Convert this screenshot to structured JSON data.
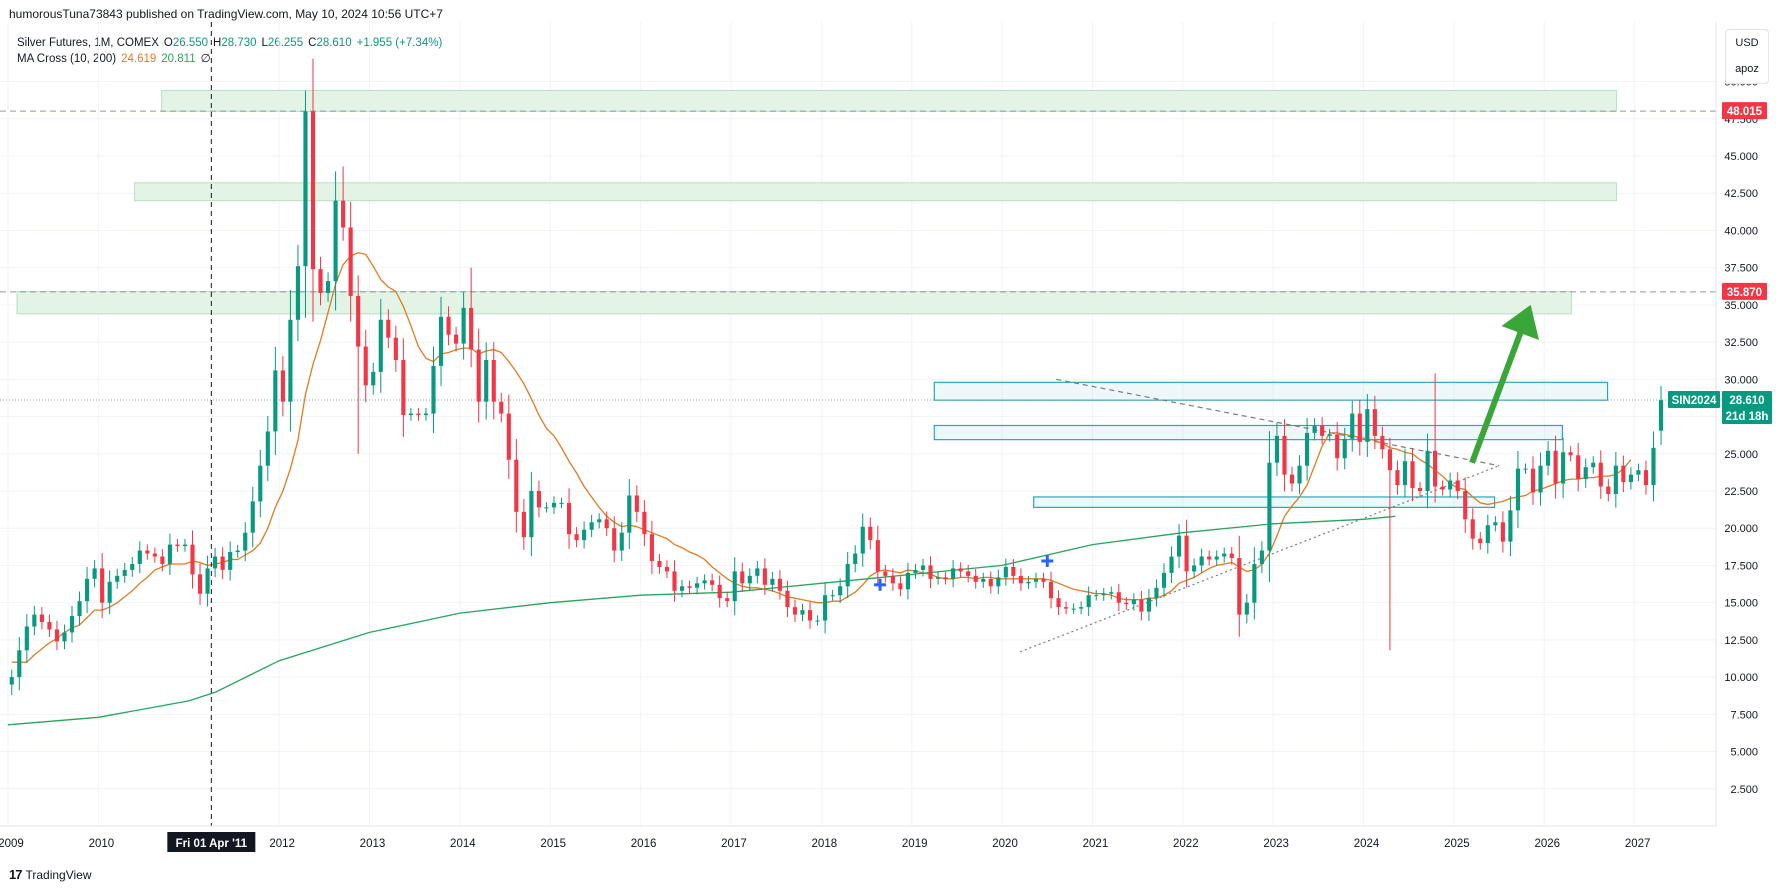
{
  "header": {
    "publisher_text": "humorousTuna73843 published on TradingView.com, May 10, 2024 10:56 UTC+7"
  },
  "legend": {
    "symbol_line": "Silver Futures, 1M, COMEX",
    "open_label": "O",
    "open": "26.550",
    "high_label": "H",
    "high": "28.730",
    "low_label": "L",
    "low": "26.255",
    "close_label": "C",
    "close": "28.610",
    "change": "+1.955 (+7.34%)",
    "indicator_name": "MA Cross (10, 200)",
    "ma_fast": "24.619",
    "ma_slow": "20.811",
    "indicator_extra": "∅"
  },
  "currency_box": {
    "currency": "USD",
    "unit": "apoz"
  },
  "price_tags": {
    "high_level": "48.015",
    "resistance_level": "35.870",
    "symbol": "SIN2024",
    "last_price": "28.610",
    "countdown": "21d 18h"
  },
  "crosshair_label": "Fri 01 Apr '11",
  "footer": {
    "brand": "TradingView"
  },
  "colors": {
    "bull": "#089981",
    "bear": "#f23645",
    "ma_fast": "#e07b22",
    "ma_slow": "#26a65b",
    "zone_fill": "#e3f3e6",
    "zone_stroke": "#b7e0c1",
    "rect_stroke": "#26a9b8",
    "arrow": "#3aa63a",
    "red_tag": "#f23645",
    "teal_tag": "#089981"
  },
  "chart_data": {
    "type": "candlestick",
    "timeframe": "1M",
    "x_ticks": [
      "2009",
      "2010",
      "2012",
      "2013",
      "2014",
      "2015",
      "2016",
      "2017",
      "2018",
      "2019",
      "2020",
      "2021",
      "2022",
      "2023",
      "2024",
      "2025",
      "2026",
      "2027"
    ],
    "y_ticks": [
      "2.500",
      "5.000",
      "7.500",
      "10.000",
      "12.500",
      "15.000",
      "17.500",
      "20.000",
      "22.500",
      "25.000",
      "27.500",
      "30.000",
      "32.500",
      "35.000",
      "37.500",
      "40.000",
      "42.500",
      "45.000",
      "47.500",
      "50.000"
    ],
    "ylim": [
      0,
      54
    ],
    "xlim": [
      2009.0,
      2027.9
    ],
    "closes": [
      10.0,
      11.8,
      13.4,
      14.2,
      13.7,
      13.2,
      12.4,
      13.0,
      14.1,
      15.1,
      16.6,
      17.3,
      15.0,
      16.4,
      16.8,
      17.2,
      17.6,
      18.5,
      18.3,
      18.1,
      17.6,
      18.9,
      18.8,
      18.9,
      16.9,
      15.6,
      17.3,
      18.1,
      17.2,
      18.4,
      18.5,
      19.7,
      21.8,
      24.2,
      26.5,
      30.6,
      28.5,
      34.0,
      37.6,
      48.0,
      37.4,
      35.8,
      36.6,
      42.0,
      40.2,
      35.6,
      32.2,
      29.6,
      30.5,
      34.0,
      32.8,
      31.3,
      27.6,
      27.7,
      27.6,
      27.7,
      30.9,
      34.2,
      33.0,
      32.4,
      34.8,
      32.0,
      28.5,
      31.3,
      28.5,
      27.7,
      24.6,
      21.1,
      19.4,
      22.5,
      21.4,
      21.4,
      21.7,
      21.7,
      19.6,
      19.2,
      19.9,
      20.4,
      20.6,
      20.0,
      18.5,
      19.7,
      22.2,
      21.1,
      19.6,
      17.8,
      17.4,
      17.1,
      15.8,
      16.1,
      16.0,
      16.3,
      16.5,
      16.2,
      15.3,
      15.1,
      17.1,
      16.3,
      16.8,
      17.3,
      16.2,
      16.6,
      15.8,
      14.7,
      14.2,
      14.5,
      13.8,
      13.8,
      15.5,
      15.5,
      16.1,
      17.6,
      18.3,
      20.1,
      19.2,
      17.1,
      16.8,
      16.3,
      15.9,
      17.0,
      17.2,
      17.5,
      16.6,
      16.7,
      16.6,
      17.3,
      17.1,
      16.8,
      16.4,
      16.6,
      16.1,
      16.7,
      17.4,
      16.8,
      16.3,
      16.4,
      16.6,
      16.4,
      15.3,
      14.7,
      14.6,
      14.6,
      14.7,
      15.5,
      15.5,
      15.6,
      15.7,
      15.0,
      14.9,
      15.2,
      14.4,
      15.3,
      16.0,
      17.0,
      18.1,
      19.5,
      17.1,
      17.5,
      18.1,
      17.9,
      18.1,
      18.3,
      18.0,
      14.2,
      15.0,
      17.6,
      18.5,
      24.4,
      26.2,
      23.6,
      23.0,
      24.2,
      26.4,
      26.9,
      26.2,
      26.3,
      24.7,
      26.0,
      27.7,
      25.8,
      28.0,
      26.2,
      25.3,
      23.9,
      22.9,
      24.5,
      22.7,
      22.5,
      25.2,
      22.8,
      22.6,
      23.2,
      22.5,
      20.6,
      19.3,
      19.0,
      20.2,
      20.4,
      19.1,
      21.2,
      24.0,
      24.0,
      22.4,
      24.2,
      25.2,
      23.0,
      25.1,
      24.9,
      23.3,
      24.1,
      24.4,
      22.8,
      22.3,
      24.2,
      23.1,
      23.6,
      23.9,
      22.9,
      25.4,
      28.6
    ],
    "ma10": [
      11.0,
      11.0,
      11.0,
      11.5,
      11.9,
      12.3,
      12.6,
      13.0,
      13.3,
      13.5,
      14.0,
      14.5,
      14.5,
      14.7,
      15.0,
      15.4,
      15.8,
      16.3,
      16.7,
      17.2,
      17.4,
      17.6,
      17.6,
      17.6,
      17.8,
      17.7,
      17.5,
      17.6,
      17.7,
      17.9,
      17.9,
      18.2,
      18.5,
      19.0,
      20.0,
      21.4,
      22.5,
      24.0,
      25.9,
      29.0,
      31.0,
      32.6,
      34.5,
      36.4,
      37.7,
      38.3,
      38.5,
      38.4,
      37.6,
      36.7,
      36.2,
      35.9,
      34.9,
      33.6,
      32.2,
      31.4,
      31.2,
      31.7,
      31.8,
      32.0,
      32.1,
      32.1,
      31.7,
      31.9,
      32.0,
      31.8,
      31.2,
      30.5,
      29.7,
      28.7,
      27.6,
      26.7,
      26.2,
      25.4,
      24.5,
      23.7,
      22.8,
      22.1,
      21.4,
      20.8,
      20.4,
      20.1,
      20.2,
      20.1,
      19.9,
      19.7,
      19.5,
      19.3,
      18.9,
      18.7,
      18.4,
      18.2,
      17.9,
      17.4,
      17.0,
      16.6,
      16.3,
      16.1,
      16.0,
      16.0,
      15.9,
      15.8,
      15.6,
      15.4,
      15.3,
      15.2,
      15.1,
      15.0,
      15.0,
      15.1,
      15.1,
      15.4,
      15.7,
      16.2,
      16.8,
      17.1,
      17.2,
      17.1,
      17.0,
      17.2,
      17.1,
      17.0,
      16.9,
      16.7,
      16.6,
      16.6,
      16.7,
      16.7,
      16.6,
      16.7,
      16.7,
      16.6,
      16.6,
      16.6,
      16.6,
      16.6,
      16.6,
      16.6,
      16.5,
      16.3,
      16.1,
      15.9,
      15.8,
      15.7,
      15.6,
      15.6,
      15.5,
      15.3,
      15.2,
      15.2,
      15.2,
      15.3,
      15.3,
      15.5,
      15.8,
      16.3,
      16.5,
      16.7,
      17.0,
      17.3,
      17.5,
      17.6,
      17.7,
      17.4,
      17.1,
      17.2,
      17.6,
      18.3,
      19.5,
      20.8,
      21.5,
      22.1,
      22.9,
      24.2,
      25.5,
      26.4,
      26.4,
      26.3,
      26.2,
      26.1,
      26.0,
      25.9,
      25.7,
      25.4,
      25.3,
      25.1,
      25.0,
      24.6,
      24.3,
      23.9,
      23.5,
      23.0,
      22.7,
      22.6,
      22.1,
      21.7,
      21.6,
      21.7,
      21.8,
      22.0,
      22.1,
      22.2,
      22.5,
      22.6,
      22.8,
      23.0,
      23.2,
      23.3,
      23.3,
      23.4,
      23.4,
      23.5,
      23.5,
      23.6,
      24.0,
      24.6
    ],
    "ma200_curve": [
      [
        2009.0,
        6.8
      ],
      [
        2010.0,
        7.3
      ],
      [
        2011.0,
        8.4
      ],
      [
        2011.3,
        9.0
      ],
      [
        2012.0,
        11.1
      ],
      [
        2013.0,
        13.0
      ],
      [
        2014.0,
        14.3
      ],
      [
        2015.0,
        15.0
      ],
      [
        2016.0,
        15.5
      ],
      [
        2017.0,
        15.7
      ],
      [
        2018.0,
        16.3
      ],
      [
        2019.0,
        16.9
      ],
      [
        2020.0,
        17.5
      ],
      [
        2021.0,
        18.9
      ],
      [
        2022.0,
        19.7
      ],
      [
        2023.0,
        20.3
      ],
      [
        2024.0,
        20.6
      ],
      [
        2024.35,
        20.8
      ]
    ],
    "zones": [
      {
        "label": "zone-48",
        "x0": 2010.7,
        "x1": 2026.8,
        "y0": 48.0,
        "y1": 49.4
      },
      {
        "label": "zone-42",
        "x0": 2010.4,
        "x1": 2026.8,
        "y0": 42.0,
        "y1": 43.2
      },
      {
        "label": "zone-35",
        "x0": 2009.1,
        "x1": 2026.3,
        "y0": 34.4,
        "y1": 35.9
      }
    ],
    "boxes": [
      {
        "label": "box-30",
        "x0": 2019.25,
        "x1": 2026.7,
        "y0": 28.6,
        "y1": 29.8
      },
      {
        "label": "box-26",
        "x0": 2019.25,
        "x1": 2026.2,
        "y0": 25.95,
        "y1": 26.9
      },
      {
        "label": "box-22",
        "x0": 2020.35,
        "x1": 2025.45,
        "y0": 21.4,
        "y1": 22.1
      }
    ],
    "trend_lines": [
      {
        "label": "descending-resistance",
        "x0": 2020.6,
        "y0": 30.0,
        "x1": 2025.5,
        "y1": 24.2
      },
      {
        "label": "ascending-support",
        "x0": 2020.2,
        "y0": 11.7,
        "x1": 2025.5,
        "y1": 24.2
      }
    ],
    "cross_signals": [
      [
        2018.65,
        16.2
      ],
      [
        2020.5,
        17.8
      ]
    ],
    "crosshair_x": 2011.25,
    "level_lines": [
      48.015,
      35.87,
      28.61
    ],
    "arrow": {
      "from": [
        2025.2,
        24.4
      ],
      "to": [
        2025.85,
        35.0
      ]
    }
  }
}
